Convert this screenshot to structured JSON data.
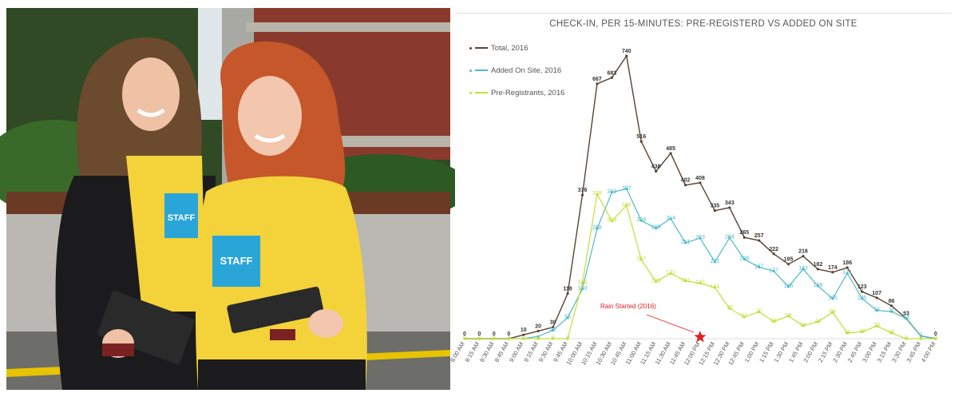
{
  "photo": {
    "left_shirt_text": "STAFF",
    "right_shirt_text": "STAFF"
  },
  "chart_data": {
    "type": "line",
    "title": "CHECK-IN, PER 15-MINUTES: PRE-REGISTERD VS ADDED ON SITE",
    "xlabel": "",
    "ylabel": "",
    "ylim": [
      0,
      800
    ],
    "grid": false,
    "legend_position": "top-left",
    "categories": [
      "8:00 AM",
      "8:15 AM",
      "8:30 AM",
      "8:45 AM",
      "9:00 AM",
      "9:15 AM",
      "9:30 AM",
      "9:45 AM",
      "10:00 AM",
      "10:15 AM",
      "10:30 AM",
      "10:45 AM",
      "11:00 AM",
      "11:15 AM",
      "11:30 AM",
      "11:45 AM",
      "12:00 PM",
      "12:15 PM",
      "12:30 PM",
      "12:45 PM",
      "1:00 PM",
      "1:15 PM",
      "1:30 PM",
      "1:45 PM",
      "2:00 PM",
      "2:15 PM",
      "2:30 PM",
      "2:45 PM",
      "3:00 PM",
      "3:15 PM",
      "3:30 PM",
      "3:45 PM",
      "4:00 PM"
    ],
    "series": [
      {
        "name": "Total, 2016",
        "color": "#5a4231",
        "values": [
          0,
          0,
          0,
          0,
          10,
          20,
          30,
          118,
          376,
          667,
          683,
          740,
          516,
          438,
          485,
          402,
          408,
          335,
          343,
          265,
          257,
          222,
          195,
          216,
          182,
          174,
          186,
          123,
          107,
          86,
          53,
          7,
          0
        ],
        "labels": [
          "0",
          "0",
          "0",
          "0",
          "10",
          "20",
          "30",
          "118",
          "376",
          "667",
          "683",
          "740",
          "516",
          "438",
          "485",
          "402",
          "408",
          "335",
          "343",
          "265",
          "257",
          "222",
          "195",
          "216",
          "182",
          "174",
          "186",
          "123",
          "107",
          "86",
          "53",
          "",
          "0"
        ]
      },
      {
        "name": "Added On Site, 2016",
        "color": "#4fb9c9",
        "values": [
          0,
          0,
          0,
          0,
          0,
          6,
          22,
          55,
          130,
          288,
          383,
          392,
          309,
          289,
          314,
          251,
          263,
          201,
          264,
          208,
          187,
          177,
          136,
          182,
          138,
          105,
          171,
          105,
          74,
          71,
          53,
          7,
          0
        ],
        "labels": [
          "",
          "",
          "",
          "",
          "",
          "",
          "22",
          "55",
          "130",
          "288",
          "383",
          "392",
          "309",
          "289",
          "314",
          "251",
          "263",
          "201",
          "264",
          "208",
          "187",
          "177",
          "136",
          "182",
          "138",
          "105",
          "171",
          "105",
          "74",
          "71",
          "53",
          "7",
          ""
        ]
      },
      {
        "name": "Pre-Registrants, 2016",
        "color": "#c5dc3a",
        "values": [
          0,
          0,
          0,
          0,
          0,
          0,
          0,
          0,
          146,
          378,
          308,
          348,
          207,
          149,
          171,
          151,
          145,
          134,
          79,
          57,
          70,
          45,
          59,
          34,
          44,
          69,
          15,
          18,
          33,
          15,
          0,
          0,
          0
        ],
        "labels": [
          "0",
          "0",
          "0",
          "0",
          "0",
          "0",
          "0",
          "0",
          "146",
          "378",
          "308",
          "348",
          "207",
          "149",
          "171",
          "151",
          "145",
          "134",
          "79",
          "57",
          "70",
          "45",
          "59",
          "34",
          "44",
          "69",
          "15",
          "18",
          "33",
          "15",
          "0",
          "0",
          "0"
        ]
      }
    ],
    "annotation": {
      "text": "Rain Started (2016)",
      "category": "12:00 PM",
      "color": "#e02020"
    }
  }
}
